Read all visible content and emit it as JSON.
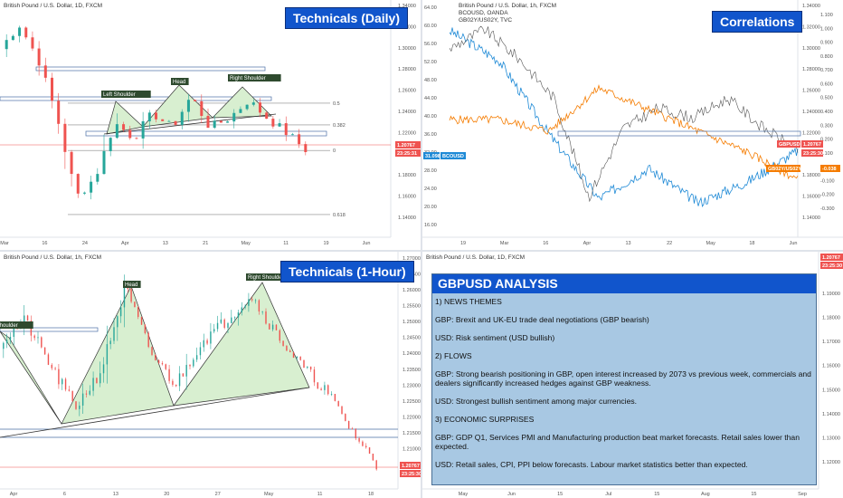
{
  "panels": {
    "daily": {
      "symbol": "British Pound / U.S. Dollar, 1D, FXCM",
      "title": "Technicals (Daily)",
      "y_ticks": [
        "1.34000",
        "1.32000",
        "1.30000",
        "1.28000",
        "1.26000",
        "1.24000",
        "1.22000",
        "1.20000",
        "1.18000",
        "1.16000",
        "1.14000"
      ],
      "x_ticks": [
        "Mar",
        "16",
        "24",
        "Apr",
        "13",
        "21",
        "May",
        "11",
        "19",
        "Jun"
      ],
      "fib_labels": [
        "0.618",
        "0.5",
        "0.382",
        "0"
      ],
      "pattern_labels": [
        "Left Shoulder",
        "Head",
        "Right Shoulder"
      ],
      "price_label": "1.20767",
      "time_label": "23:25:31"
    },
    "correlations": {
      "symbol": "British Pound / U.S. Dollar, 1h, FXCM",
      "symbol2": "BCOUSD, OANDA",
      "symbol3": "GB02Y/US02Y, TVC",
      "title": "Correlations",
      "left_ticks": [
        "64.00",
        "60.00",
        "56.00",
        "52.00",
        "48.00",
        "44.00",
        "40.00",
        "36.00",
        "32.00",
        "28.00",
        "24.00",
        "20.00",
        "16.00"
      ],
      "right_ticks": [
        "1.34000",
        "1.32000",
        "1.30000",
        "1.28000",
        "1.26000",
        "1.24000",
        "1.22000",
        "1.20000",
        "1.18000",
        "1.16000",
        "1.14000"
      ],
      "right_ticks2": [
        "1.100",
        "1.000",
        "0.900",
        "0.800",
        "0.700",
        "0.600",
        "0.500",
        "0.400",
        "0.300",
        "0.200",
        "0.100",
        "0.000",
        "-0.100",
        "-0.200",
        "-0.300"
      ],
      "x_ticks": [
        "19",
        "Mar",
        "16",
        "Apr",
        "13",
        "22",
        "May",
        "18",
        "Jun"
      ],
      "bco_label": "31.098",
      "bco_name": "BCOUSD",
      "gbp_label": "GBPUSD",
      "gbp_value": "1.20767",
      "gbp_time": "23:25:30",
      "spread_label": "GB02Y/US02Y",
      "spread_value": "-0.038"
    },
    "hourly": {
      "symbol": "British Pound / U.S. Dollar, 1h, FXCM",
      "title": "Technicals (1-Hour)",
      "y_ticks": [
        "1.27000",
        "1.26500",
        "1.26000",
        "1.25500",
        "1.25000",
        "1.24500",
        "1.24000",
        "1.23500",
        "1.23000",
        "1.22500",
        "1.22000",
        "1.21500",
        "1.21000",
        "1.20500"
      ],
      "x_ticks": [
        "Apr",
        "6",
        "13",
        "20",
        "27",
        "May",
        "11",
        "18"
      ],
      "pattern_labels": [
        "Left Shoulder",
        "Head",
        "Right Shoulder"
      ],
      "price_label": "1.20767",
      "time_label": "23:25:30"
    },
    "analysis_chart": {
      "symbol": "British Pound / U.S. Dollar, 1D, FXCM",
      "price_label": "1.20767",
      "time_label": "23:25:30",
      "y_ticks": [
        "1.19000",
        "1.18000",
        "1.17000",
        "1.16000",
        "1.15000",
        "1.14000",
        "1.13000",
        "1.12000"
      ],
      "x_ticks": [
        "May",
        "Jun",
        "15",
        "Jul",
        "15",
        "Aug",
        "15",
        "Sep"
      ]
    }
  },
  "analysis": {
    "title": "GBPUSD ANALYSIS",
    "lines": [
      "1) NEWS THEMES",
      "GBP: Brexit and UK-EU trade deal negotiations (GBP bearish)",
      "USD: Risk sentiment (USD bullish)",
      "2) FLOWS",
      "GBP: Strong bearish positioning in GBP, open interest increased by 2073 vs previous week, commercials and dealers significantly increased hedges against GBP weakness.",
      "USD: Strongest bullish sentiment among major currencies.",
      "3) ECONOMIC SURPRISES",
      "GBP: GDP Q1, Services PMI and Manufacturing production beat market forecasts. Retail sales lower than expected.",
      "USD: Retail sales, CPI, PPI below forecasts. Labour market statistics better than expected."
    ]
  },
  "colors": {
    "bull": "#26a69a",
    "bear": "#ef5350",
    "brent": "#1f8ad6",
    "spread": "#f57c00",
    "gbp": "#555555",
    "pattern_fill": "#d8efd0",
    "tag_bg": "#1155cc",
    "analysis_bg": "#a8c8e3"
  },
  "chart_data": [
    {
      "type": "line",
      "title": "Technicals (Daily)",
      "series": [
        {
          "name": "British Pound / U.S. Dollar, 1D, FXCM",
          "x": [
            "Mar",
            "16",
            "24",
            "Apr",
            "13",
            "21",
            "May",
            "11",
            "19"
          ],
          "values": [
            1.32,
            1.26,
            1.16,
            1.23,
            1.23,
            1.255,
            1.245,
            1.225,
            1.208
          ]
        }
      ],
      "fib_levels": {
        "0.618": 1.255,
        "0.5": 1.233,
        "0.382": 1.207,
        "0": 1.142
      },
      "ylim": [
        1.13,
        1.345
      ]
    },
    {
      "type": "line",
      "title": "Correlations",
      "series": [
        {
          "name": "BCOUSD",
          "x": [
            "19",
            "Mar",
            "16",
            "Apr",
            "13",
            "22",
            "May",
            "18"
          ],
          "values": [
            59,
            52,
            35,
            20,
            27,
            19,
            24,
            31.1
          ]
        },
        {
          "name": "GB02Y/US02Y",
          "x": [
            "19",
            "Mar",
            "16",
            "Apr",
            "13",
            "22",
            "May",
            "18"
          ],
          "values": [
            0.38,
            0.38,
            0.3,
            0.6,
            0.45,
            0.3,
            0.15,
            -0.038
          ]
        }
      ],
      "ylim": [
        14,
        64
      ]
    },
    {
      "type": "line",
      "title": "Technicals (1-Hour)",
      "series": [
        {
          "name": "British Pound / U.S. Dollar, 1h, FXCM",
          "x": [
            "Apr",
            "6",
            "13",
            "20",
            "27",
            "May",
            "11",
            "18"
          ],
          "values": [
            1.245,
            1.225,
            1.262,
            1.232,
            1.255,
            1.259,
            1.232,
            1.207
          ]
        }
      ],
      "ylim": [
        1.203,
        1.27
      ]
    }
  ]
}
